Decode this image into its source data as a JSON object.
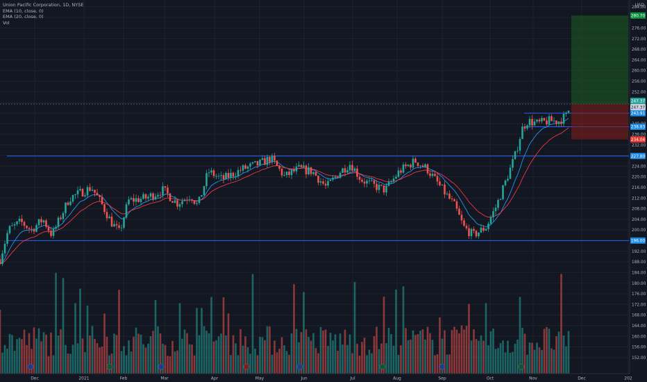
{
  "legend": {
    "title": "Union Pacific Corporation, 1D, NYSE",
    "ema10": "EMA (10, close, 0)",
    "ema20": "EMA (20, close, 0)",
    "vol": "Vol"
  },
  "colors": {
    "background": "#131722",
    "grid": "#1e222d",
    "up": "#26a69a",
    "down": "#ef5350",
    "ema10": "#2196f3",
    "ema20": "#f23645",
    "hline": "#2962ff",
    "profit_zone": "#1b5e20",
    "loss_zone": "#7f1d1d"
  },
  "chart_data": {
    "type": "candlestick",
    "symbol": "Union Pacific Corporation",
    "interval": "1D",
    "exchange": "NYSE",
    "currency": "USD",
    "ylim": [
      148,
      286
    ],
    "y_ticks": [
      152,
      156,
      160,
      164,
      168,
      172,
      176,
      180,
      184,
      188,
      192,
      196,
      200,
      204,
      208,
      212,
      216,
      220,
      224,
      228,
      232,
      236,
      240,
      244,
      248,
      252,
      256,
      260,
      264,
      268,
      272,
      276,
      280,
      284
    ],
    "y_tick_labels": [
      "152.00",
      "156.00",
      "160.00",
      "164.00",
      "168.00",
      "172.00",
      "176.00",
      "180.00",
      "184.00",
      "188.00",
      "192.00",
      "196.00",
      "200.00",
      "204.00",
      "208.00",
      "212.00",
      "216.00",
      "220.00",
      "224.00",
      "228.00",
      "232.00",
      "236.00",
      "240.00",
      "244.00",
      "248.00",
      "252.00",
      "256.00",
      "260.00",
      "264.00",
      "268.00",
      "272.00",
      "276.00",
      "280.00",
      "284.00"
    ],
    "x_ticks": [
      "Dec",
      "2021",
      "Feb",
      "Mar",
      "Apr",
      "May",
      "Jun",
      "Jul",
      "Aug",
      "Sep",
      "Oct",
      "Nov",
      "Dec",
      "202"
    ],
    "horizontal_levels": [
      {
        "value": 196.0,
        "label": "196.00"
      },
      {
        "value": 227.8,
        "label": "227.80"
      },
      {
        "value": 238.83,
        "label": "238.83"
      },
      {
        "value": 243.91,
        "label": "243.91"
      }
    ],
    "price_labels": [
      {
        "value": 280.7,
        "label": "280.70",
        "color": "#26a69a"
      },
      {
        "value": 247.37,
        "label": "247.37",
        "color": "#26a69a"
      },
      {
        "value": 247.37,
        "label": "247.37",
        "color": "#d1d4dc"
      },
      {
        "value": 234.04,
        "label": "234.04",
        "color": "#ef5350"
      }
    ],
    "position": {
      "entry": 247.37,
      "target": 280.7,
      "stop": 234.04
    },
    "series": [
      {
        "name": "EMA (10, close, 0)"
      },
      {
        "name": "EMA (20, close, 0)"
      },
      {
        "name": "Vol"
      }
    ],
    "grid": true
  }
}
